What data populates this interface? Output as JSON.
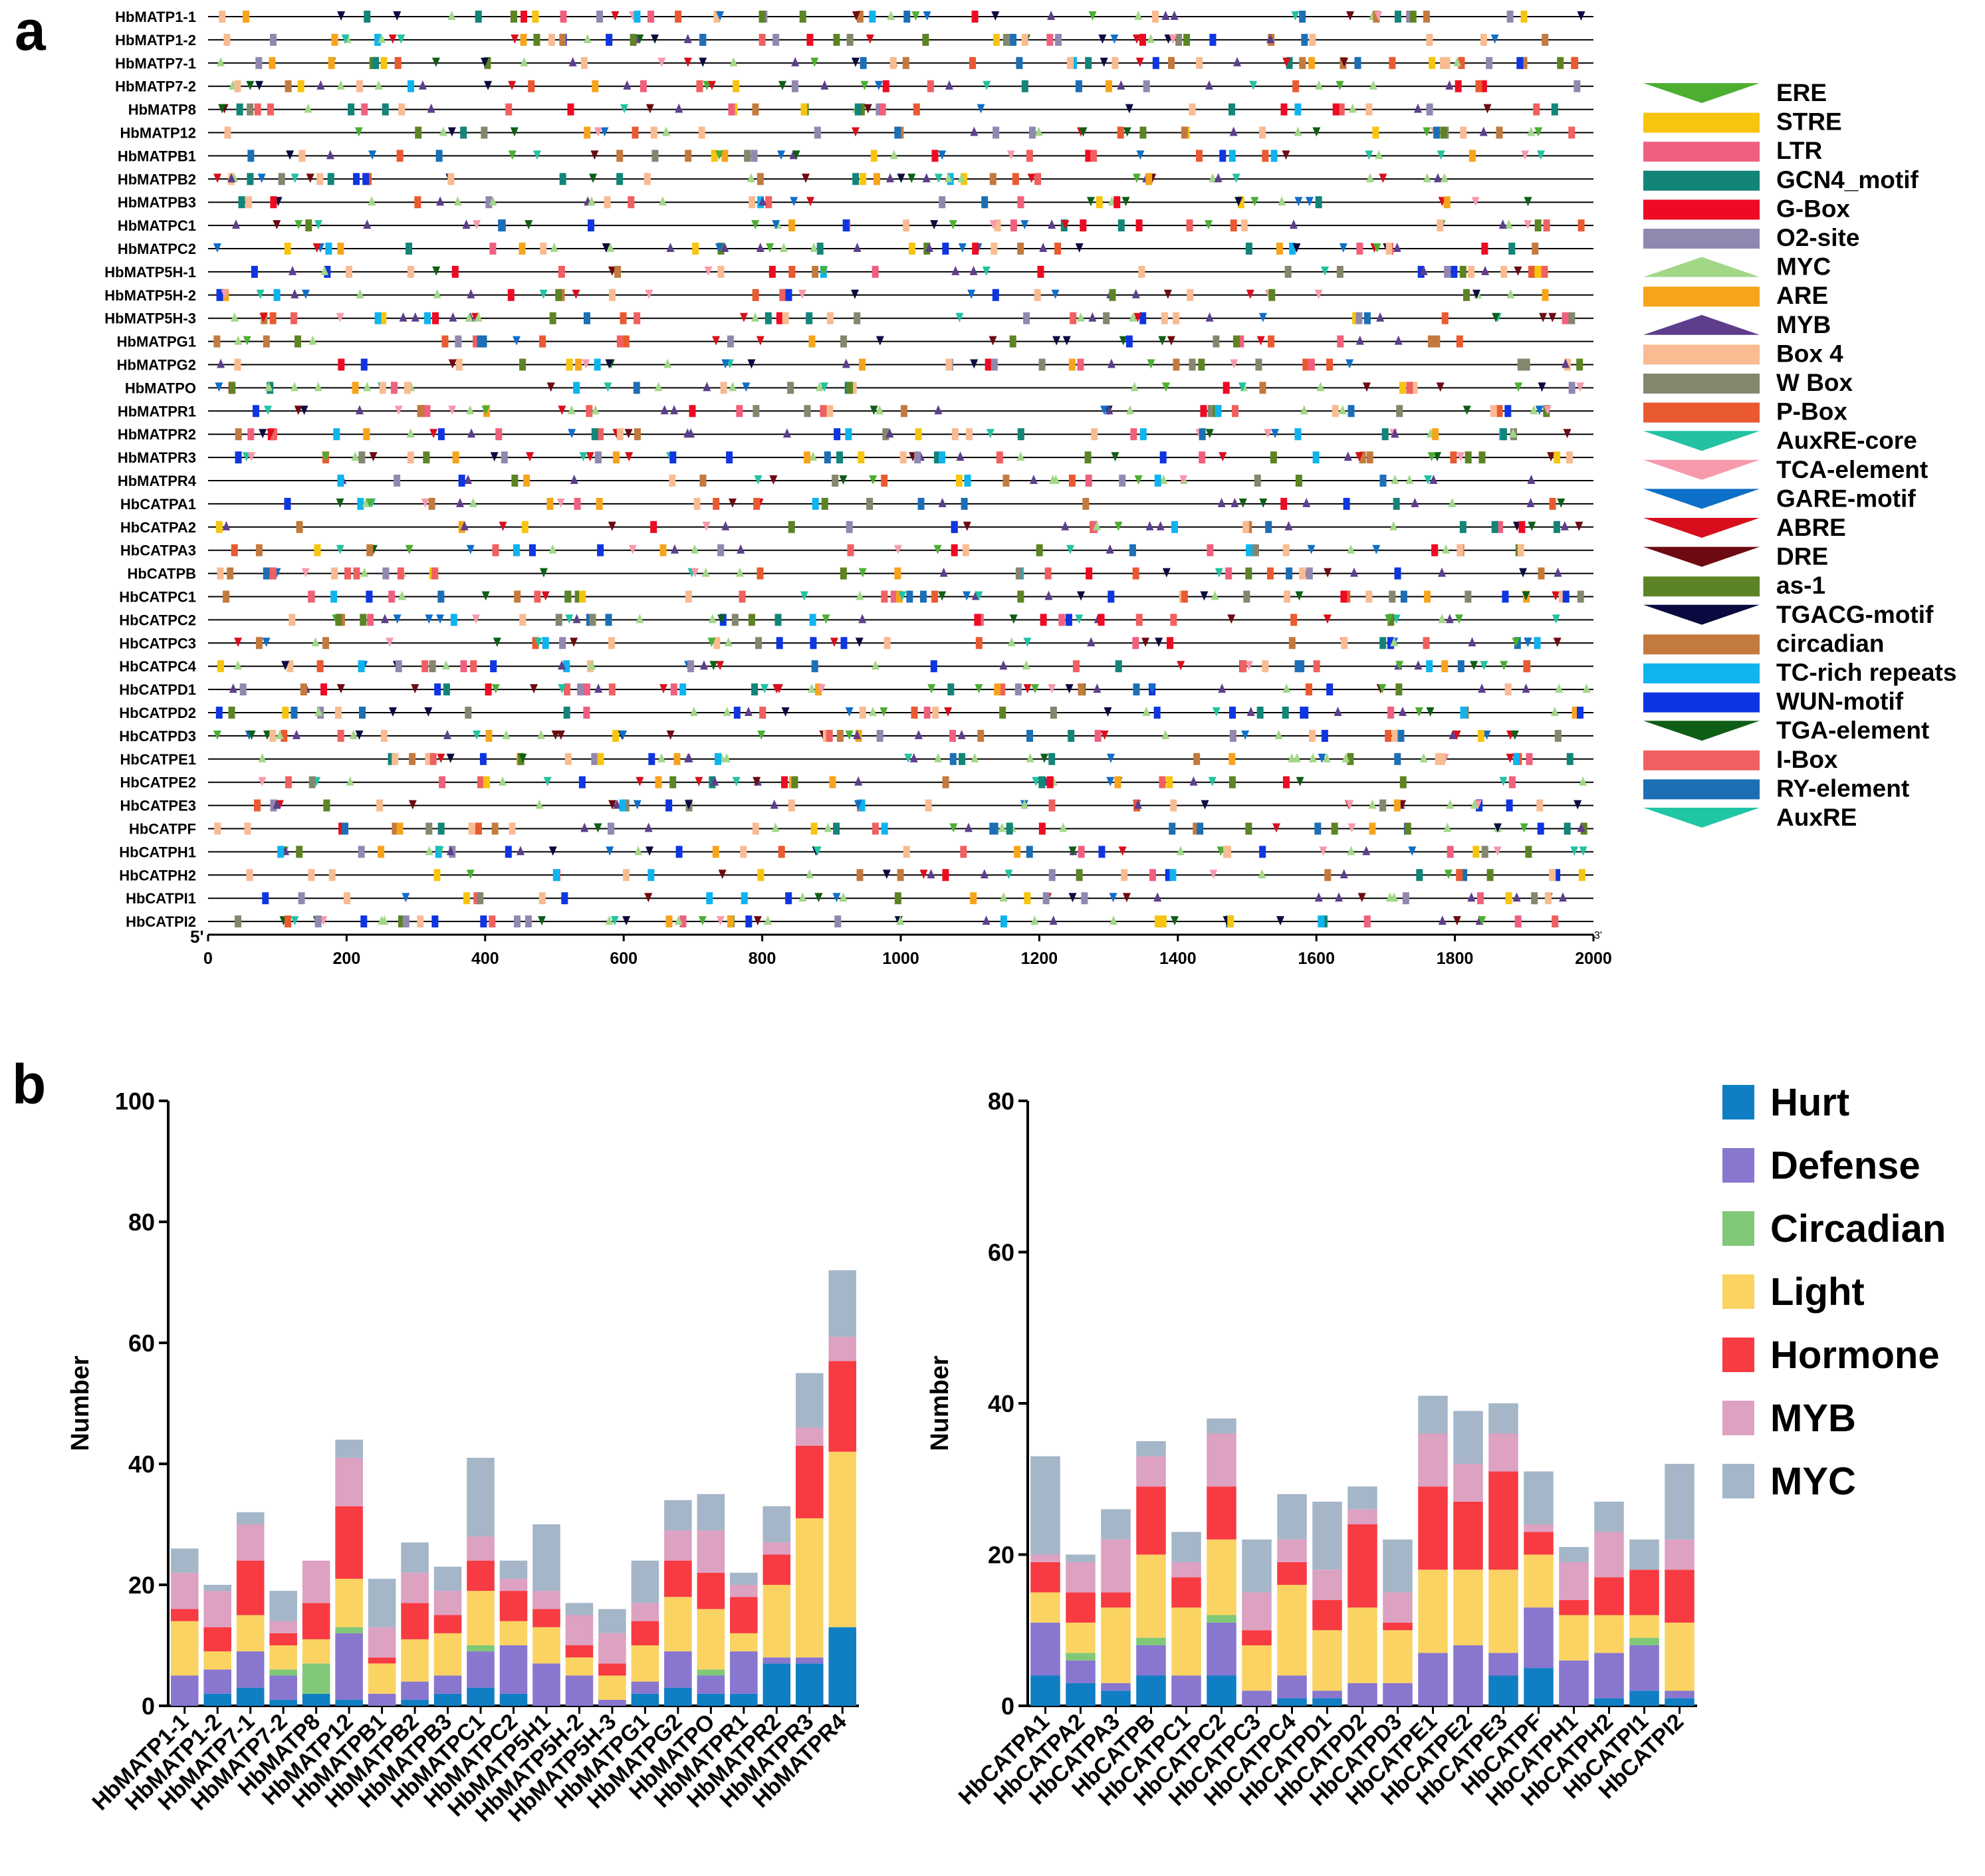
{
  "panel_a": {
    "panel_label": "a",
    "five_prime_label": "5'",
    "three_prime_label": "3'",
    "ticks": [
      "0",
      "200",
      "400",
      "600",
      "800",
      "1000",
      "1200",
      "1400",
      "1600",
      "1800",
      "2000"
    ],
    "genes": [
      "HbMATP1-1",
      "HbMATP1-2",
      "HbMATP7-1",
      "HbMATP7-2",
      "HbMATP8",
      "HbMATP12",
      "HbMATPB1",
      "HbMATPB2",
      "HbMATPB3",
      "HbMATPC1",
      "HbMATPC2",
      "HbMATP5H-1",
      "HbMATP5H-2",
      "HbMATP5H-3",
      "HbMATPG1",
      "HbMATPG2",
      "HbMATPO",
      "HbMATPR1",
      "HbMATPR2",
      "HbMATPR3",
      "HbMATPR4",
      "HbCATPA1",
      "HbCATPA2",
      "HbCATPA3",
      "HbCATPB",
      "HbCATPC1",
      "HbCATPC2",
      "HbCATPC3",
      "HbCATPC4",
      "HbCATPD1",
      "HbCATPD2",
      "HbCATPD3",
      "HbCATPE1",
      "HbCATPE2",
      "HbCATPE3",
      "HbCATPF",
      "HbCATPH1",
      "HbCATPH2",
      "HbCATPI1",
      "HbCATPI2"
    ],
    "legend": [
      {
        "name": "ERE",
        "color": "#4caf32",
        "shape": "down"
      },
      {
        "name": "STRE",
        "color": "#f7c510",
        "shape": "rect"
      },
      {
        "name": "LTR",
        "color": "#f0607e",
        "shape": "rect"
      },
      {
        "name": "GCN4_motif",
        "color": "#138478",
        "shape": "rect"
      },
      {
        "name": "G-Box",
        "color": "#ee0a22",
        "shape": "rect"
      },
      {
        "name": "O2-site",
        "color": "#9188b0",
        "shape": "rect"
      },
      {
        "name": "MYC",
        "color": "#a2d788",
        "shape": "up"
      },
      {
        "name": "ARE",
        "color": "#f7a41c",
        "shape": "rect"
      },
      {
        "name": "MYB",
        "color": "#5d3e8c",
        "shape": "up"
      },
      {
        "name": "Box 4",
        "color": "#f8bb92",
        "shape": "rect"
      },
      {
        "name": "W Box",
        "color": "#84866e",
        "shape": "rect"
      },
      {
        "name": "P-Box",
        "color": "#ea5a30",
        "shape": "rect"
      },
      {
        "name": "AuxRE-core",
        "color": "#22c2a2",
        "shape": "down"
      },
      {
        "name": "TCA-element",
        "color": "#f79aac",
        "shape": "down"
      },
      {
        "name": "GARE-motif",
        "color": "#0e6fc8",
        "shape": "down"
      },
      {
        "name": "ABRE",
        "color": "#d90e1c",
        "shape": "down"
      },
      {
        "name": "DRE",
        "color": "#6d0a12",
        "shape": "down"
      },
      {
        "name": "as-1",
        "color": "#5d8424",
        "shape": "rect"
      },
      {
        "name": "TGACG-motif",
        "color": "#0a0a40",
        "shape": "down"
      },
      {
        "name": "circadian",
        "color": "#c37a3e",
        "shape": "rect"
      },
      {
        "name": "TC-rich repeats",
        "color": "#0fb4ee",
        "shape": "rect"
      },
      {
        "name": "WUN-motif",
        "color": "#0f35e2",
        "shape": "rect"
      },
      {
        "name": "TGA-element",
        "color": "#0f5e16",
        "shape": "down"
      },
      {
        "name": "I-Box",
        "color": "#f06060",
        "shape": "rect"
      },
      {
        "name": "RY-element",
        "color": "#1c6fb4",
        "shape": "rect"
      },
      {
        "name": "AuxRE",
        "color": "#20c6a4",
        "shape": "down"
      }
    ]
  },
  "panel_b": {
    "panel_label": "b",
    "legend": [
      {
        "name": "Hurt",
        "color": "#0f7ec3"
      },
      {
        "name": "Defense",
        "color": "#8876cf"
      },
      {
        "name": "Circadian",
        "color": "#80c878"
      },
      {
        "name": "Light",
        "color": "#fad362"
      },
      {
        "name": "Hormone",
        "color": "#f83a42"
      },
      {
        "name": "MYB",
        "color": "#dda1c2"
      },
      {
        "name": "MYC",
        "color": "#a4b6c8"
      }
    ]
  },
  "chart_data": [
    {
      "type": "bar",
      "stacked": true,
      "ylabel": "Number",
      "ylim": [
        0,
        100
      ],
      "yticks": [
        0,
        20,
        40,
        60,
        80,
        100
      ],
      "categories": [
        "HbMATP1-1",
        "HbMATP1-2",
        "HbMATP7-1",
        "HbMATP7-2",
        "HbMATP8",
        "HbMATP12",
        "HbMATPB1",
        "HbMATPB2",
        "HbMATPB3",
        "HbMATPC1",
        "HbMATPC2",
        "HbMATP5H1",
        "HbMATP5H-2",
        "HbMATP5H-3",
        "HbMATPG1",
        "HbMATPG2",
        "HbMATPO",
        "HbMATPR1",
        "HbMATPR2",
        "HbMATPR3",
        "HbMATPR4"
      ],
      "series": [
        {
          "name": "Hurt",
          "values": [
            0,
            2,
            3,
            1,
            2,
            1,
            0,
            1,
            2,
            3,
            2,
            0,
            0,
            0,
            2,
            3,
            2,
            2,
            7,
            7,
            13
          ]
        },
        {
          "name": "Defense",
          "values": [
            5,
            4,
            6,
            4,
            0,
            11,
            2,
            3,
            3,
            6,
            8,
            7,
            5,
            1,
            2,
            6,
            3,
            7,
            1,
            1,
            0
          ]
        },
        {
          "name": "Circadian",
          "values": [
            0,
            0,
            0,
            1,
            5,
            1,
            0,
            0,
            0,
            1,
            0,
            0,
            0,
            0,
            0,
            0,
            1,
            0,
            0,
            0,
            0
          ]
        },
        {
          "name": "Light",
          "values": [
            9,
            3,
            6,
            4,
            4,
            8,
            5,
            7,
            7,
            9,
            4,
            6,
            3,
            4,
            6,
            9,
            10,
            3,
            12,
            23,
            29
          ]
        },
        {
          "name": "Hormone",
          "values": [
            2,
            4,
            9,
            2,
            6,
            12,
            1,
            6,
            3,
            5,
            5,
            3,
            2,
            2,
            4,
            6,
            6,
            6,
            5,
            12,
            15
          ]
        },
        {
          "name": "MYB",
          "values": [
            6,
            6,
            6,
            2,
            7,
            8,
            5,
            5,
            4,
            4,
            2,
            3,
            5,
            5,
            3,
            5,
            7,
            2,
            2,
            3,
            4
          ]
        },
        {
          "name": "MYC",
          "values": [
            4,
            1,
            2,
            5,
            0,
            3,
            8,
            5,
            4,
            13,
            3,
            11,
            2,
            4,
            7,
            5,
            6,
            2,
            6,
            9,
            11
          ]
        }
      ]
    },
    {
      "type": "bar",
      "stacked": true,
      "ylabel": "Number",
      "ylim": [
        0,
        80
      ],
      "yticks": [
        0,
        20,
        40,
        60,
        80
      ],
      "categories": [
        "HbCATPA1",
        "HbCATPA2",
        "HbCATPA3",
        "HbCATPB",
        "HbCATPC1",
        "HbCATPC2",
        "HbCATPC3",
        "HbCATPC4",
        "HbCATPD1",
        "HbCATPD2",
        "HbCATPD3",
        "HbCATPE1",
        "HbCATPE2",
        "HbCATPE3",
        "HbCATPF",
        "HbCATPH1",
        "HbCATPH2",
        "HbCATPI1",
        "HbCATPI2"
      ],
      "series": [
        {
          "name": "Hurt",
          "values": [
            4,
            3,
            2,
            4,
            0,
            4,
            0,
            1,
            1,
            0,
            0,
            0,
            0,
            4,
            5,
            0,
            1,
            2,
            1
          ]
        },
        {
          "name": "Defense",
          "values": [
            7,
            3,
            1,
            4,
            4,
            7,
            2,
            3,
            1,
            3,
            3,
            7,
            8,
            3,
            8,
            6,
            6,
            6,
            1
          ]
        },
        {
          "name": "Circadian",
          "values": [
            0,
            1,
            0,
            1,
            0,
            1,
            0,
            0,
            0,
            0,
            0,
            0,
            0,
            0,
            0,
            0,
            0,
            1,
            0
          ]
        },
        {
          "name": "Light",
          "values": [
            4,
            4,
            10,
            11,
            9,
            10,
            6,
            12,
            8,
            10,
            7,
            11,
            10,
            11,
            7,
            6,
            5,
            3,
            9
          ]
        },
        {
          "name": "Hormone",
          "values": [
            4,
            4,
            2,
            9,
            4,
            7,
            2,
            3,
            4,
            11,
            1,
            11,
            9,
            13,
            3,
            2,
            5,
            6,
            7
          ]
        },
        {
          "name": "MYB",
          "values": [
            1,
            4,
            7,
            4,
            2,
            7,
            5,
            3,
            4,
            2,
            4,
            7,
            5,
            5,
            1,
            5,
            6,
            0,
            4
          ]
        },
        {
          "name": "MYC",
          "values": [
            13,
            1,
            4,
            2,
            4,
            2,
            7,
            6,
            9,
            3,
            7,
            5,
            7,
            4,
            7,
            2,
            4,
            4,
            10
          ]
        }
      ]
    }
  ]
}
